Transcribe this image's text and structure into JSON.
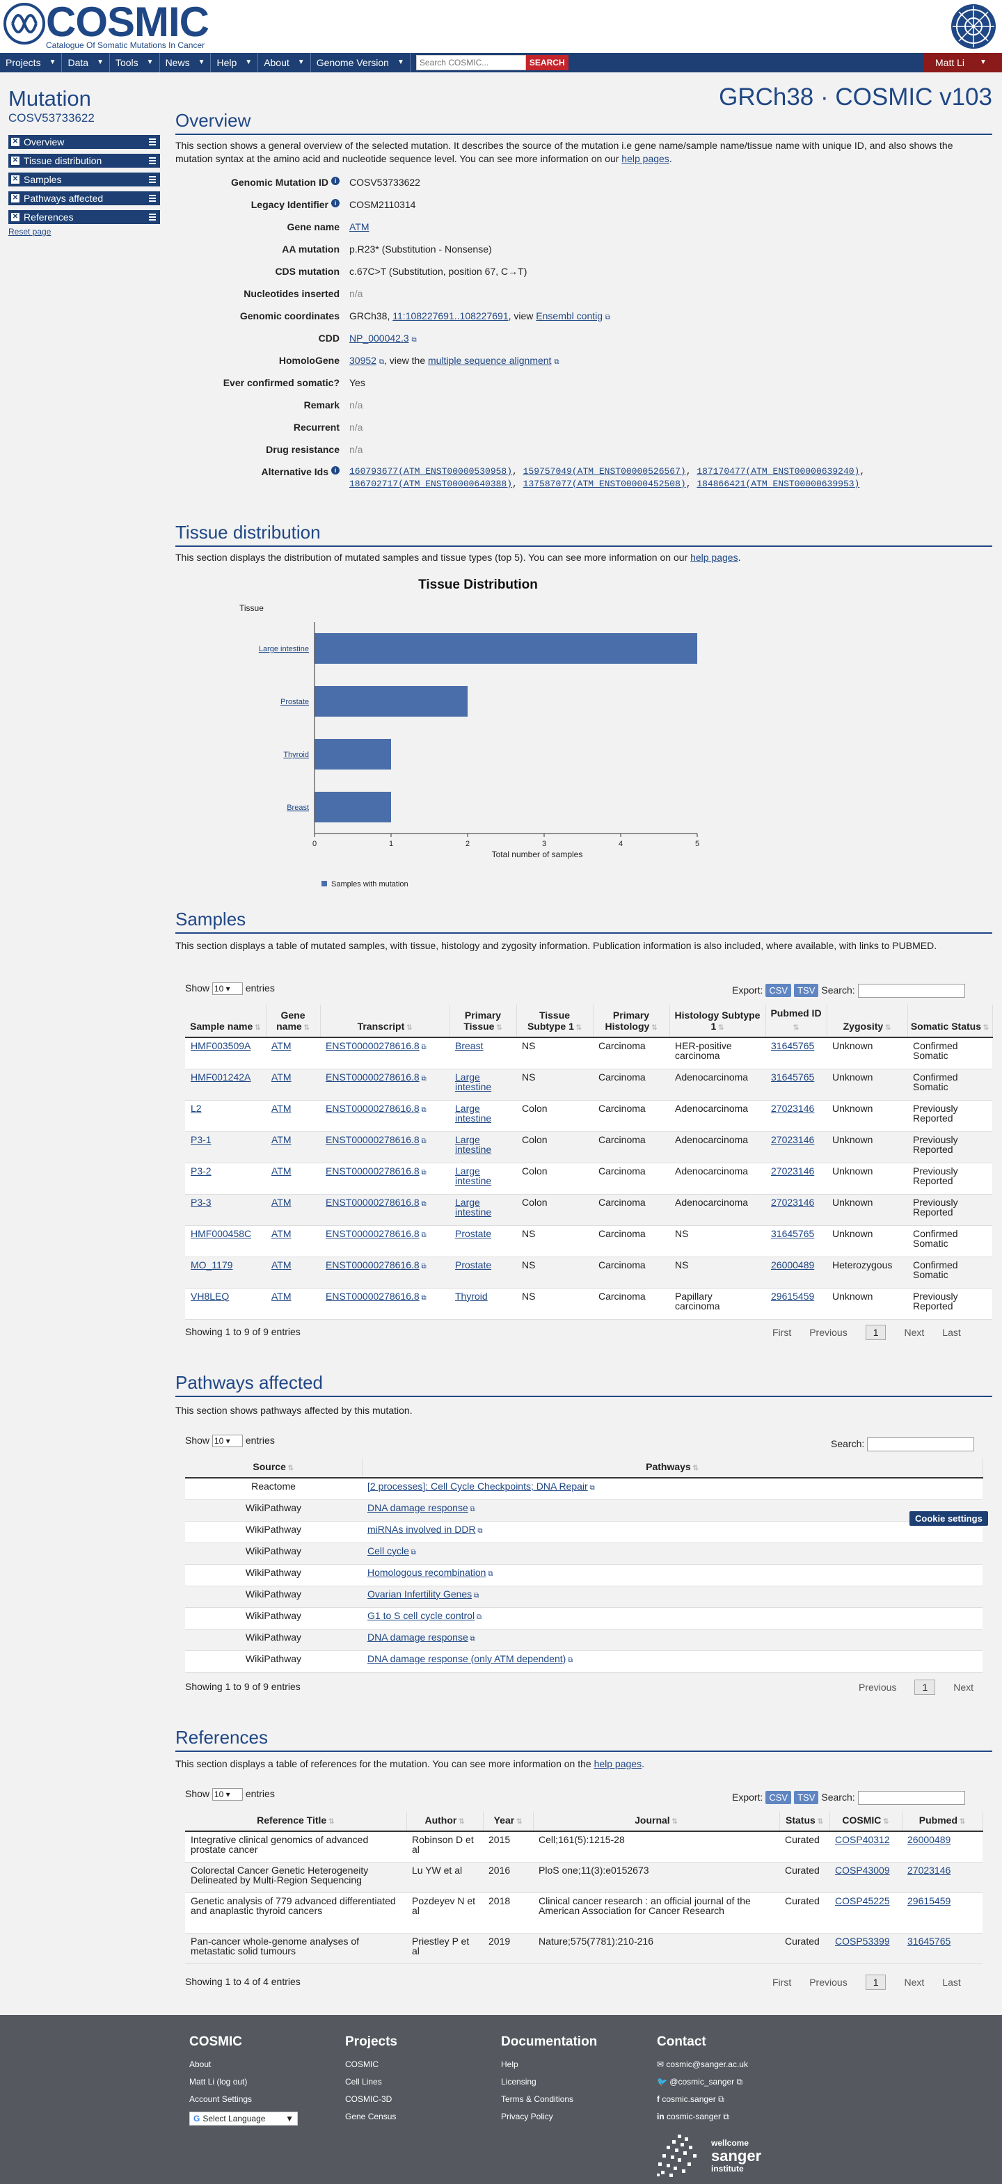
{
  "header": {
    "logo": "COSMIC",
    "tagline": "Catalogue Of Somatic Mutations In Cancer"
  },
  "nav": {
    "items": [
      "Projects",
      "Data",
      "Tools",
      "News",
      "Help",
      "About",
      "Genome Version"
    ],
    "search_placeholder": "Search COSMIC...",
    "search_button": "SEARCH",
    "user": "Matt Li"
  },
  "sidebar": {
    "title": "Mutation",
    "subtitle": "COSV53733622",
    "items": [
      "Overview",
      "Tissue distribution",
      "Samples",
      "Pathways affected",
      "References"
    ],
    "reset": "Reset page"
  },
  "build": "GRCh38 · COSMIC v103",
  "overview": {
    "heading": "Overview",
    "intro_a": "This section shows a general overview of the selected mutation. It describes the source of the mutation i.e gene name/sample name/tissue name with unique ID, and also shows the mutation syntax at the amino acid and nucleotide sequence level. You can see more information on our ",
    "intro_link": "help pages",
    "intro_b": ".",
    "labels": {
      "gmid": "Genomic Mutation ID",
      "legacy": "Legacy Identifier",
      "gene": "Gene name",
      "aa": "AA mutation",
      "cds": "CDS mutation",
      "nuc": "Nucleotides inserted",
      "coords": "Genomic coordinates",
      "cdd": "CDD",
      "homolo": "HomoloGene",
      "confirmed": "Ever confirmed somatic?",
      "remark": "Remark",
      "recurrent": "Recurrent",
      "drug": "Drug resistance",
      "alt": "Alternative Ids"
    },
    "values": {
      "gmid": "COSV53733622",
      "legacy": "COSM2110314",
      "gene": "ATM",
      "aa": "p.R23* (Substitution - Nonsense)",
      "cds": "c.67C>T (Substitution, position 67, C→T)",
      "nuc": "n/a",
      "coords_pre": "GRCh38, ",
      "coords_link": "11:108227691..108227691",
      "coords_mid": ", view ",
      "coords_link2": "Ensembl contig",
      "cdd": "NP_000042.3",
      "homolo_link": "30952",
      "homolo_mid": ", view the ",
      "homolo_link2": "multiple sequence alignment",
      "confirmed": "Yes",
      "remark": "n/a",
      "recurrent": "n/a",
      "drug": "n/a",
      "alt_ids": [
        "160793677(ATM_ENST00000530958)",
        "159757049(ATM_ENST00000526567)",
        "187170477(ATM_ENST00000639240)",
        "186702717(ATM_ENST00000640388)",
        "137587077(ATM_ENST00000452508)",
        "184866421(ATM_ENST00000639953)"
      ]
    }
  },
  "tissue": {
    "heading": "Tissue distribution",
    "intro_a": "This section displays the distribution of mutated samples and tissue types (top 5). You can see more information on our ",
    "intro_link": "help pages",
    "intro_b": "."
  },
  "chart_data": {
    "type": "bar",
    "orientation": "horizontal",
    "title": "Tissue Distribution",
    "ylabel": "Tissue",
    "xlabel": "Total number of samples",
    "categories": [
      "Large intestine",
      "Prostate",
      "Thyroid",
      "Breast"
    ],
    "series": [
      {
        "name": "Samples with mutation",
        "values": [
          5,
          2,
          1,
          1
        ]
      }
    ],
    "xlim": [
      0,
      5
    ],
    "xticks": [
      0,
      1,
      2,
      3,
      4,
      5
    ],
    "grid": false,
    "legend": "bottom",
    "color": "#4a6ea9"
  },
  "samples": {
    "heading": "Samples",
    "intro": "This section displays a table of mutated samples, with tissue, histology and zygosity information. Publication information is also included, where available, with links to PUBMED.",
    "show": "Show",
    "entries": "entries",
    "page_len": "10",
    "export": "Export:",
    "csv": "CSV",
    "tsv": "TSV",
    "search": "Search:",
    "columns": [
      "Sample name",
      "Gene name",
      "Transcript",
      "Primary Tissue",
      "Tissue Subtype 1",
      "Primary Histology",
      "Histology Subtype 1",
      "Pubmed ID",
      "Zygosity",
      "Somatic Status"
    ],
    "rows": [
      [
        "HMF003509A",
        "ATM",
        "ENST00000278616.8",
        "Breast",
        "NS",
        "Carcinoma",
        "HER-positive carcinoma",
        "31645765",
        "Unknown",
        "Confirmed Somatic"
      ],
      [
        "HMF001242A",
        "ATM",
        "ENST00000278616.8",
        "Large intestine",
        "NS",
        "Carcinoma",
        "Adenocarcinoma",
        "31645765",
        "Unknown",
        "Confirmed Somatic"
      ],
      [
        "L2",
        "ATM",
        "ENST00000278616.8",
        "Large intestine",
        "Colon",
        "Carcinoma",
        "Adenocarcinoma",
        "27023146",
        "Unknown",
        "Previously Reported"
      ],
      [
        "P3-1",
        "ATM",
        "ENST00000278616.8",
        "Large intestine",
        "Colon",
        "Carcinoma",
        "Adenocarcinoma",
        "27023146",
        "Unknown",
        "Previously Reported"
      ],
      [
        "P3-2",
        "ATM",
        "ENST00000278616.8",
        "Large intestine",
        "Colon",
        "Carcinoma",
        "Adenocarcinoma",
        "27023146",
        "Unknown",
        "Previously Reported"
      ],
      [
        "P3-3",
        "ATM",
        "ENST00000278616.8",
        "Large intestine",
        "Colon",
        "Carcinoma",
        "Adenocarcinoma",
        "27023146",
        "Unknown",
        "Previously Reported"
      ],
      [
        "HMF000458C",
        "ATM",
        "ENST00000278616.8",
        "Prostate",
        "NS",
        "Carcinoma",
        "NS",
        "31645765",
        "Unknown",
        "Confirmed Somatic"
      ],
      [
        "MO_1179",
        "ATM",
        "ENST00000278616.8",
        "Prostate",
        "NS",
        "Carcinoma",
        "NS",
        "26000489",
        "Heterozygous",
        "Confirmed Somatic"
      ],
      [
        "VH8LEQ",
        "ATM",
        "ENST00000278616.8",
        "Thyroid",
        "NS",
        "Carcinoma",
        "Papillary carcinoma",
        "29615459",
        "Unknown",
        "Previously Reported"
      ]
    ],
    "showing": "Showing 1 to 9 of 9 entries",
    "pager": [
      "First",
      "Previous",
      "1",
      "Next",
      "Last"
    ]
  },
  "pathways": {
    "heading": "Pathways affected",
    "intro": "This section shows pathways affected by this mutation.",
    "show": "Show",
    "entries": "entries",
    "page_len": "10",
    "search": "Search:",
    "columns": [
      "Source",
      "Pathways"
    ],
    "rows": [
      [
        "Reactome",
        "[2 processes]: Cell Cycle Checkpoints; DNA Repair"
      ],
      [
        "WikiPathway",
        "DNA damage response"
      ],
      [
        "WikiPathway",
        "miRNAs involved in DDR"
      ],
      [
        "WikiPathway",
        "Cell cycle"
      ],
      [
        "WikiPathway",
        "Homologous recombination"
      ],
      [
        "WikiPathway",
        "Ovarian Infertility Genes"
      ],
      [
        "WikiPathway",
        "G1 to S cell cycle control"
      ],
      [
        "WikiPathway",
        "DNA damage response"
      ],
      [
        "WikiPathway",
        "DNA damage response (only ATM dependent)"
      ]
    ],
    "showing": "Showing 1 to 9 of 9 entries",
    "pager": [
      "Previous",
      "1",
      "Next"
    ]
  },
  "cookie": "Cookie settings",
  "references": {
    "heading": "References",
    "intro_a": "This section displays a table of references for the mutation. You can see more information on the ",
    "intro_link": "help pages",
    "intro_b": ".",
    "show": "Show",
    "entries": "entries",
    "page_len": "10",
    "export": "Export:",
    "csv": "CSV",
    "tsv": "TSV",
    "search": "Search:",
    "columns": [
      "Reference Title",
      "Author",
      "Year",
      "Journal",
      "Status",
      "COSMIC",
      "Pubmed"
    ],
    "rows": [
      [
        "Integrative clinical genomics of advanced prostate cancer",
        "Robinson D et al",
        "2015",
        "Cell;161(5):1215-28",
        "Curated",
        "COSP40312",
        "26000489"
      ],
      [
        "Colorectal Cancer Genetic Heterogeneity Delineated by Multi-Region Sequencing",
        "Lu YW et al",
        "2016",
        "PloS one;11(3):e0152673",
        "Curated",
        "COSP43009",
        "27023146"
      ],
      [
        "Genetic analysis of 779 advanced differentiated and anaplastic thyroid cancers",
        "Pozdeyev N et al",
        "2018",
        "Clinical cancer research : an official journal of the American Association for Cancer Research",
        "Curated",
        "COSP45225",
        "29615459"
      ],
      [
        "Pan-cancer whole-genome analyses of metastatic solid tumours",
        "Priestley P et al",
        "2019",
        "Nature;575(7781):210-216",
        "Curated",
        "COSP53399",
        "31645765"
      ]
    ],
    "showing": "Showing 1 to 4 of 4 entries",
    "pager": [
      "First",
      "Previous",
      "1",
      "Next",
      "Last"
    ]
  },
  "footer": {
    "cosmic": {
      "title": "COSMIC",
      "links": [
        "About",
        "Matt Li (log out)",
        "Account Settings"
      ],
      "lang": "Select Language"
    },
    "projects": {
      "title": "Projects",
      "links": [
        "COSMIC",
        "Cell Lines",
        "COSMIC-3D",
        "Gene Census"
      ]
    },
    "docs": {
      "title": "Documentation",
      "links": [
        "Help",
        "Licensing",
        "Terms & Conditions",
        "Privacy Policy"
      ]
    },
    "contact": {
      "title": "Contact",
      "links": [
        "cosmic@sanger.ac.uk",
        "@cosmic_sanger",
        "cosmic.sanger",
        "cosmic-sanger"
      ]
    },
    "sanger": [
      "wellcome",
      "sanger",
      "institute"
    ]
  }
}
